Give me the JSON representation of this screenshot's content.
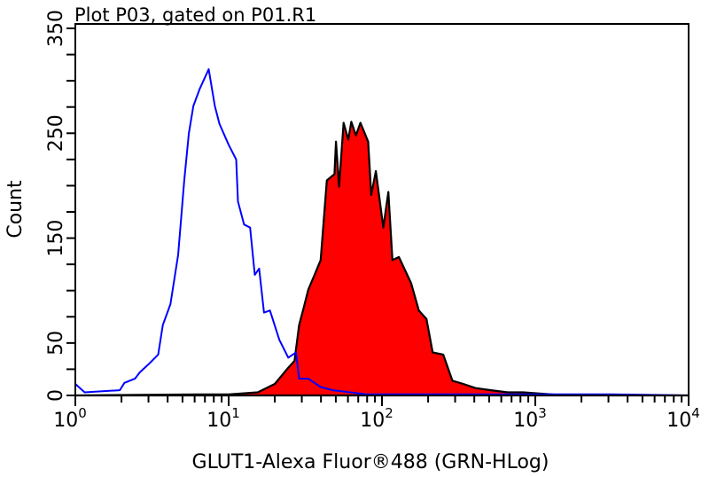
{
  "chart_data": {
    "type": "area",
    "title": "Plot P03, gated on P01.R1",
    "xlabel": "GLUT1-Alexa Fluor®488 (GRN-HLog)",
    "ylabel": "Count",
    "xscale": "log",
    "xlim": [
      1,
      10000
    ],
    "ylim": [
      0,
      350
    ],
    "x_ticks": [
      {
        "base": "10",
        "exp": "0",
        "value": 1
      },
      {
        "base": "10",
        "exp": "1",
        "value": 10
      },
      {
        "base": "10",
        "exp": "2",
        "value": 100
      },
      {
        "base": "10",
        "exp": "3",
        "value": 1000
      },
      {
        "base": "10",
        "exp": "4",
        "value": 10000
      }
    ],
    "y_tick_labels": [
      "0",
      "50",
      "150",
      "250",
      "350"
    ],
    "y_minor_step": 25,
    "grid": false,
    "colors": {
      "control_line": "#0000ff",
      "sample_fill": "#ff0000",
      "sample_line": "#000000",
      "frame": "#000000"
    },
    "series": [
      {
        "style": "line",
        "color": "#0000ff",
        "x": [
          1,
          1.15,
          1.95,
          2.09,
          2.45,
          2.63,
          3.02,
          3.47,
          3.72,
          4.17,
          4.68,
          5.13,
          5.5,
          5.89,
          6.46,
          7.41,
          8.13,
          8.71,
          10,
          11.2,
          11.5,
          12.6,
          13.8,
          14.8,
          15.8,
          17.0,
          18.6,
          21.4,
          24.5,
          27.5,
          28.8,
          33.1,
          39.8,
          47.9,
          79,
          316,
          3162,
          10000
        ],
        "y": [
          11,
          3,
          5,
          12,
          16,
          22,
          30,
          39,
          67,
          87,
          134,
          205,
          250,
          276,
          292,
          311,
          276,
          259,
          239,
          225,
          185,
          163,
          160,
          115,
          121,
          79,
          81,
          53,
          36,
          41,
          16,
          16,
          8,
          5,
          1,
          1,
          1,
          0
        ]
      },
      {
        "style": "filled",
        "color": "#ff0000",
        "x": [
          1,
          6.3,
          10,
          15.5,
          20,
          24,
          26.9,
          28.8,
          30.9,
          33.1,
          36.3,
          39.8,
          43.7,
          49,
          50.1,
          52.5,
          56.2,
          60.3,
          63.1,
          67.6,
          72.4,
          81.3,
          85.1,
          91.2,
          102,
          110,
          117,
          129,
          155,
          174,
          195,
          214,
          251,
          288,
          339,
          407,
          513,
          661,
          832,
          1585,
          10000
        ],
        "y": [
          0,
          1,
          1,
          3,
          11,
          25,
          33,
          67,
          84,
          101,
          115,
          129,
          205,
          211,
          242,
          199,
          260,
          244,
          261,
          248,
          260,
          242,
          191,
          214,
          160,
          194,
          129,
          132,
          107,
          81,
          73,
          41,
          39,
          14,
          11,
          7,
          5,
          3,
          3,
          0,
          0
        ]
      }
    ]
  }
}
